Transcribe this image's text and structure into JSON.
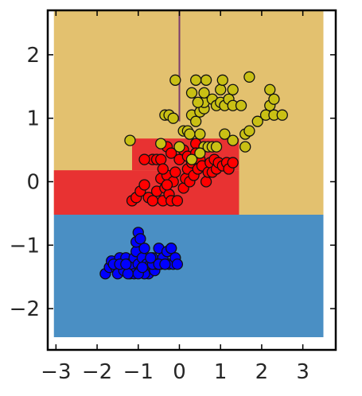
{
  "chart_data": {
    "type": "scatter",
    "title": "",
    "xlabel": "",
    "ylabel": "",
    "xlim": [
      -3.2,
      3.8
    ],
    "ylim": [
      -2.65,
      2.7
    ],
    "grid": false,
    "legend": "none",
    "x_ticks": [
      -3,
      -2,
      -1,
      0,
      1,
      2,
      3
    ],
    "x_tick_labels": [
      "−3",
      "−2",
      "−1",
      "0",
      "1",
      "2",
      "3"
    ],
    "y_ticks": [
      -2,
      -1,
      0,
      1,
      2
    ],
    "y_tick_labels": [
      "−2",
      "−1",
      "0",
      "1",
      "2"
    ],
    "plot_area": {
      "x": [
        -3.05,
        3.5
      ],
      "y": [
        -2.45,
        2.7
      ]
    },
    "decision_regions": [
      {
        "class": "blue",
        "color": "#4a8fc4",
        "x": [
          -3.05,
          3.5
        ],
        "y": [
          -2.45,
          -0.52
        ]
      },
      {
        "class": "yellow",
        "color": "#e3c16f",
        "x": [
          -3.05,
          3.5
        ],
        "y": [
          -0.52,
          2.7
        ]
      },
      {
        "class": "red",
        "color": "#e83232",
        "x": [
          -3.05,
          1.45
        ],
        "y": [
          -0.52,
          0.18
        ]
      },
      {
        "class": "red",
        "color": "#e83232",
        "x": [
          -1.15,
          1.45
        ],
        "y": [
          0.18,
          0.68
        ]
      },
      {
        "class": "red",
        "color": "#e83232",
        "x": [
          -3.05,
          1.45
        ],
        "y": [
          -0.52,
          -0.52
        ]
      }
    ],
    "boundary_line": {
      "x": 0.0,
      "y": [
        0.95,
        2.7
      ],
      "color": "#7a3b6e"
    },
    "series": [
      {
        "color": "#0000ff",
        "points": [
          [
            -1.8,
            -1.45
          ],
          [
            -1.7,
            -1.35
          ],
          [
            -1.65,
            -1.25
          ],
          [
            -1.55,
            -1.35
          ],
          [
            -1.5,
            -1.45
          ],
          [
            -1.45,
            -1.2
          ],
          [
            -1.4,
            -1.3
          ],
          [
            -1.35,
            -1.4
          ],
          [
            -1.3,
            -1.2
          ],
          [
            -1.25,
            -1.3
          ],
          [
            -1.2,
            -1.45
          ],
          [
            -1.15,
            -1.3
          ],
          [
            -1.1,
            -1.2
          ],
          [
            -1.05,
            -1.1
          ],
          [
            -1.0,
            -1.3
          ],
          [
            -0.95,
            -1.4
          ],
          [
            -0.9,
            -1.2
          ],
          [
            -0.85,
            -1.05
          ],
          [
            -0.8,
            -1.3
          ],
          [
            -0.75,
            -1.45
          ],
          [
            -0.7,
            -1.3
          ],
          [
            -0.65,
            -1.2
          ],
          [
            -0.6,
            -1.4
          ],
          [
            -0.55,
            -1.3
          ],
          [
            -0.5,
            -1.05
          ],
          [
            -0.45,
            -1.3
          ],
          [
            -0.4,
            -1.2
          ],
          [
            -0.35,
            -1.3
          ],
          [
            -0.3,
            -1.1
          ],
          [
            -0.25,
            -1.3
          ],
          [
            -0.2,
            -1.05
          ],
          [
            -0.15,
            -1.3
          ],
          [
            -0.1,
            -1.2
          ],
          [
            -0.2,
            -1.05
          ],
          [
            -1.05,
            -0.95
          ],
          [
            -1.0,
            -0.8
          ],
          [
            -0.95,
            -0.9
          ],
          [
            -1.1,
            -1.45
          ],
          [
            -1.25,
            -1.45
          ],
          [
            -0.85,
            -1.45
          ],
          [
            -0.65,
            -1.3
          ],
          [
            -0.5,
            -1.3
          ],
          [
            -0.35,
            -1.3
          ],
          [
            -1.6,
            -1.3
          ],
          [
            -1.45,
            -1.3
          ],
          [
            -1.3,
            -1.3
          ],
          [
            -1.0,
            -1.45
          ],
          [
            -0.9,
            -1.35
          ],
          [
            -0.05,
            -1.3
          ],
          [
            -0.7,
            -1.2
          ]
        ]
      },
      {
        "color": "#ff0000",
        "points": [
          [
            -1.15,
            -0.3
          ],
          [
            -1.05,
            -0.25
          ],
          [
            -0.95,
            -0.15
          ],
          [
            -0.85,
            -0.05
          ],
          [
            -0.75,
            -0.25
          ],
          [
            -0.65,
            -0.3
          ],
          [
            -0.55,
            -0.15
          ],
          [
            -0.45,
            0.05
          ],
          [
            -0.4,
            -0.3
          ],
          [
            -0.35,
            -0.1
          ],
          [
            -0.3,
            0.1
          ],
          [
            -0.25,
            -0.2
          ],
          [
            -0.2,
            -0.3
          ],
          [
            -0.15,
            0.0
          ],
          [
            -0.1,
            0.15
          ],
          [
            -0.05,
            -0.3
          ],
          [
            0.1,
            -0.1
          ],
          [
            0.15,
            0.05
          ],
          [
            0.2,
            0.2
          ],
          [
            0.25,
            0.0
          ],
          [
            0.3,
            0.3
          ],
          [
            0.35,
            0.1
          ],
          [
            0.45,
            0.2
          ],
          [
            0.5,
            0.35
          ],
          [
            0.55,
            0.25
          ],
          [
            0.65,
            0.0
          ],
          [
            0.7,
            0.15
          ],
          [
            0.75,
            0.3
          ],
          [
            0.8,
            0.15
          ],
          [
            0.85,
            0.35
          ],
          [
            0.9,
            0.2
          ],
          [
            0.95,
            0.3
          ],
          [
            1.05,
            0.25
          ],
          [
            1.15,
            0.3
          ],
          [
            1.2,
            0.2
          ],
          [
            1.3,
            0.3
          ],
          [
            -0.65,
            0.35
          ],
          [
            -0.55,
            0.35
          ],
          [
            -0.45,
            0.35
          ],
          [
            -0.85,
            0.35
          ],
          [
            -0.3,
            0.55
          ],
          [
            -0.2,
            0.45
          ],
          [
            0.0,
            0.35
          ],
          [
            0.1,
            0.5
          ],
          [
            0.4,
            0.6
          ],
          [
            0.6,
            0.55
          ],
          [
            0.2,
            0.4
          ],
          [
            0.4,
            0.45
          ],
          [
            -0.3,
            -0.05
          ],
          [
            -0.4,
            0.2
          ]
        ]
      },
      {
        "color": "#c9c014",
        "points": [
          [
            -1.2,
            0.65
          ],
          [
            -0.45,
            0.6
          ],
          [
            0.0,
            0.55
          ],
          [
            0.3,
            0.35
          ],
          [
            0.5,
            0.75
          ],
          [
            0.6,
            0.55
          ],
          [
            0.7,
            0.55
          ],
          [
            0.8,
            0.55
          ],
          [
            0.9,
            0.55
          ],
          [
            1.1,
            0.75
          ],
          [
            1.3,
            0.65
          ],
          [
            1.6,
            0.55
          ],
          [
            1.6,
            0.75
          ],
          [
            1.7,
            0.8
          ],
          [
            1.9,
            0.95
          ],
          [
            2.1,
            1.05
          ],
          [
            2.3,
            1.05
          ],
          [
            2.5,
            1.05
          ],
          [
            2.2,
            1.2
          ],
          [
            2.3,
            1.3
          ],
          [
            2.2,
            1.45
          ],
          [
            -0.35,
            1.05
          ],
          [
            -0.25,
            1.05
          ],
          [
            -0.15,
            1.0
          ],
          [
            0.1,
            0.8
          ],
          [
            0.2,
            0.8
          ],
          [
            0.3,
            1.05
          ],
          [
            0.4,
            0.95
          ],
          [
            0.5,
            1.1
          ],
          [
            0.6,
            1.15
          ],
          [
            0.6,
            1.25
          ],
          [
            0.6,
            1.4
          ],
          [
            0.65,
            1.6
          ],
          [
            0.8,
            1.3
          ],
          [
            0.9,
            1.2
          ],
          [
            1.0,
            1.25
          ],
          [
            1.0,
            1.45
          ],
          [
            1.05,
            1.6
          ],
          [
            1.1,
            1.2
          ],
          [
            1.2,
            1.3
          ],
          [
            1.3,
            1.45
          ],
          [
            1.3,
            1.2
          ],
          [
            1.5,
            1.2
          ],
          [
            1.7,
            1.65
          ],
          [
            0.4,
            1.6
          ],
          [
            0.3,
            1.4
          ],
          [
            -0.1,
            1.6
          ],
          [
            0.45,
            1.25
          ],
          [
            0.25,
            0.75
          ],
          [
            0.5,
            0.45
          ]
        ]
      }
    ]
  }
}
